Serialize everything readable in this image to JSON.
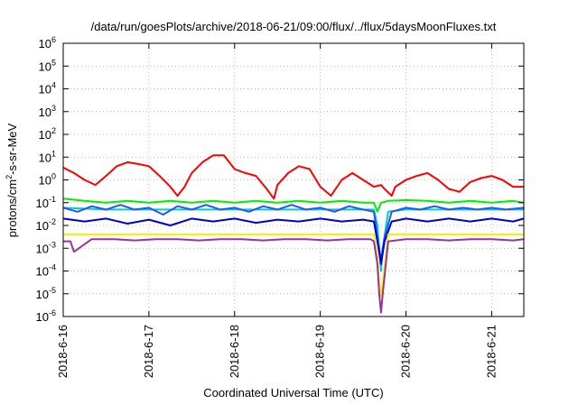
{
  "chart_data": {
    "type": "line",
    "title": "/data/run/goesPlots/archive/2018-06-21/09:00/flux/../flux/5daysMoonFluxes.txt",
    "xlabel": "Coordinated Universal Time (UTC)",
    "ylabel": {
      "prefix": "protons/cm",
      "superscript": "2",
      "suffix": "-s-sr-MeV"
    },
    "y_scale": "log",
    "ylim": [
      1e-06,
      1000000.0
    ],
    "y_ticks": [
      {
        "value": 1e-06,
        "base": "10",
        "exp": "-6"
      },
      {
        "value": 1e-05,
        "base": "10",
        "exp": "-5"
      },
      {
        "value": 0.0001,
        "base": "10",
        "exp": "-4"
      },
      {
        "value": 0.001,
        "base": "10",
        "exp": "-3"
      },
      {
        "value": 0.01,
        "base": "10",
        "exp": "-2"
      },
      {
        "value": 0.1,
        "base": "10",
        "exp": "-1"
      },
      {
        "value": 1,
        "base": "10",
        "exp": "0"
      },
      {
        "value": 10,
        "base": "10",
        "exp": "1"
      },
      {
        "value": 100,
        "base": "10",
        "exp": "2"
      },
      {
        "value": 1000,
        "base": "10",
        "exp": "3"
      },
      {
        "value": 10000,
        "base": "10",
        "exp": "4"
      },
      {
        "value": 100000,
        "base": "10",
        "exp": "5"
      },
      {
        "value": 1000000,
        "base": "10",
        "exp": "6"
      }
    ],
    "xlim": [
      "2018-06-16T00:00",
      "2018-06-21T09:00"
    ],
    "x_ticks": [
      "2018-6-16",
      "2018-6-17",
      "2018-6-18",
      "2018-6-19",
      "2018-6-20",
      "2018-6-21"
    ],
    "grid": true,
    "legend": "none",
    "series": [
      {
        "color": "#ff0000",
        "x": [
          "2018-06-16T00:00",
          "2018-06-16T03:00",
          "2018-06-16T06:00",
          "2018-06-16T09:00",
          "2018-06-16T12:00",
          "2018-06-16T15:00",
          "2018-06-16T18:00",
          "2018-06-16T21:00",
          "2018-06-17T00:00",
          "2018-06-17T03:00",
          "2018-06-17T06:00",
          "2018-06-17T08:00",
          "2018-06-17T10:00",
          "2018-06-17T12:00",
          "2018-06-17T15:00",
          "2018-06-17T18:00",
          "2018-06-17T21:00",
          "2018-06-18T00:00",
          "2018-06-18T03:00",
          "2018-06-18T06:00",
          "2018-06-18T09:00",
          "2018-06-18T11:00",
          "2018-06-18T12:00",
          "2018-06-18T15:00",
          "2018-06-18T18:00",
          "2018-06-18T21:00",
          "2018-06-19T00:00",
          "2018-06-19T03:00",
          "2018-06-19T06:00",
          "2018-06-19T09:00",
          "2018-06-19T12:00",
          "2018-06-19T15:00",
          "2018-06-19T17:00",
          "2018-06-19T18:00",
          "2018-06-19T20:00",
          "2018-06-19T21:00",
          "2018-06-20T00:00",
          "2018-06-20T03:00",
          "2018-06-20T06:00",
          "2018-06-20T09:00",
          "2018-06-20T12:00",
          "2018-06-20T15:00",
          "2018-06-20T18:00",
          "2018-06-20T21:00",
          "2018-06-21T00:00",
          "2018-06-21T03:00",
          "2018-06-21T06:00",
          "2018-06-21T09:00"
        ],
        "y": [
          3.5,
          2,
          1,
          0.6,
          1.5,
          4,
          6,
          5,
          4,
          1.5,
          0.5,
          0.2,
          0.5,
          2,
          6,
          12,
          12,
          3,
          2,
          1.5,
          0.4,
          0.15,
          0.6,
          2,
          4,
          3,
          0.5,
          0.2,
          1,
          2,
          1,
          0.5,
          0.6,
          0.4,
          0.2,
          0.5,
          1,
          1.5,
          2,
          1,
          0.4,
          0.3,
          0.8,
          1.2,
          1.5,
          1,
          0.5,
          0.5
        ]
      },
      {
        "color": "#00ee00",
        "x": [
          "2018-06-16T00:00",
          "2018-06-16T06:00",
          "2018-06-16T12:00",
          "2018-06-16T18:00",
          "2018-06-17T00:00",
          "2018-06-17T06:00",
          "2018-06-17T12:00",
          "2018-06-17T18:00",
          "2018-06-18T00:00",
          "2018-06-18T06:00",
          "2018-06-18T12:00",
          "2018-06-18T18:00",
          "2018-06-19T00:00",
          "2018-06-19T06:00",
          "2018-06-19T12:00",
          "2018-06-19T15:00",
          "2018-06-19T16:00",
          "2018-06-19T17:00",
          "2018-06-19T19:00",
          "2018-06-20T00:00",
          "2018-06-20T06:00",
          "2018-06-20T12:00",
          "2018-06-20T18:00",
          "2018-06-21T00:00",
          "2018-06-21T06:00",
          "2018-06-21T09:00"
        ],
        "y": [
          0.15,
          0.12,
          0.1,
          0.12,
          0.1,
          0.12,
          0.1,
          0.12,
          0.1,
          0.12,
          0.1,
          0.12,
          0.1,
          0.12,
          0.1,
          0.1,
          0.04,
          0.1,
          0.12,
          0.13,
          0.12,
          0.1,
          0.12,
          0.1,
          0.12,
          0.1
        ]
      },
      {
        "color": "#00cccc",
        "x": [
          "2018-06-16T00:00",
          "2018-06-16T12:00",
          "2018-06-17T00:00",
          "2018-06-17T12:00",
          "2018-06-18T00:00",
          "2018-06-18T12:00",
          "2018-06-19T00:00",
          "2018-06-19T12:00",
          "2018-06-19T15:00",
          "2018-06-19T16:00",
          "2018-06-19T16:30",
          "2018-06-19T17:00",
          "2018-06-19T17:30",
          "2018-06-19T19:00",
          "2018-06-20T00:00",
          "2018-06-20T12:00",
          "2018-06-21T00:00",
          "2018-06-21T09:00"
        ],
        "y": [
          0.06,
          0.05,
          0.05,
          0.05,
          0.05,
          0.05,
          0.05,
          0.05,
          0.05,
          0.01,
          0.001,
          0.0001,
          0.001,
          0.04,
          0.05,
          0.05,
          0.05,
          0.05
        ]
      },
      {
        "color": "#2255ff",
        "x": [
          "2018-06-16T00:00",
          "2018-06-16T04:00",
          "2018-06-16T08:00",
          "2018-06-16T12:00",
          "2018-06-16T16:00",
          "2018-06-16T20:00",
          "2018-06-17T00:00",
          "2018-06-17T04:00",
          "2018-06-17T08:00",
          "2018-06-17T12:00",
          "2018-06-17T16:00",
          "2018-06-17T20:00",
          "2018-06-18T00:00",
          "2018-06-18T04:00",
          "2018-06-18T08:00",
          "2018-06-18T12:00",
          "2018-06-18T16:00",
          "2018-06-18T20:00",
          "2018-06-19T00:00",
          "2018-06-19T04:00",
          "2018-06-19T08:00",
          "2018-06-19T12:00",
          "2018-06-19T15:00",
          "2018-06-19T16:00",
          "2018-06-19T17:00",
          "2018-06-19T18:00",
          "2018-06-19T20:00",
          "2018-06-20T00:00",
          "2018-06-20T04:00",
          "2018-06-20T08:00",
          "2018-06-20T12:00",
          "2018-06-20T16:00",
          "2018-06-20T20:00",
          "2018-06-21T00:00",
          "2018-06-21T04:00",
          "2018-06-21T09:00"
        ],
        "y": [
          0.06,
          0.04,
          0.07,
          0.05,
          0.08,
          0.05,
          0.06,
          0.03,
          0.07,
          0.05,
          0.08,
          0.05,
          0.06,
          0.04,
          0.07,
          0.05,
          0.08,
          0.05,
          0.06,
          0.04,
          0.07,
          0.05,
          0.04,
          0.003,
          0.0003,
          0.003,
          0.04,
          0.06,
          0.05,
          0.07,
          0.05,
          0.06,
          0.05,
          0.06,
          0.05,
          0.06
        ]
      },
      {
        "color": "#0000cc",
        "x": [
          "2018-06-16T00:00",
          "2018-06-16T06:00",
          "2018-06-16T12:00",
          "2018-06-16T18:00",
          "2018-06-17T00:00",
          "2018-06-17T06:00",
          "2018-06-17T12:00",
          "2018-06-17T18:00",
          "2018-06-18T00:00",
          "2018-06-18T06:00",
          "2018-06-18T12:00",
          "2018-06-18T18:00",
          "2018-06-19T00:00",
          "2018-06-19T06:00",
          "2018-06-19T12:00",
          "2018-06-19T15:00",
          "2018-06-19T16:00",
          "2018-06-19T17:00",
          "2018-06-19T18:00",
          "2018-06-19T20:00",
          "2018-06-20T00:00",
          "2018-06-20T06:00",
          "2018-06-20T12:00",
          "2018-06-20T18:00",
          "2018-06-21T00:00",
          "2018-06-21T06:00",
          "2018-06-21T09:00"
        ],
        "y": [
          0.02,
          0.015,
          0.02,
          0.012,
          0.018,
          0.01,
          0.02,
          0.015,
          0.02,
          0.013,
          0.018,
          0.015,
          0.02,
          0.015,
          0.018,
          0.015,
          0.002,
          0.0002,
          0.002,
          0.015,
          0.02,
          0.015,
          0.02,
          0.015,
          0.02,
          0.015,
          0.02
        ]
      },
      {
        "color": "#ffee00",
        "x": [
          "2018-06-16T00:00",
          "2018-06-16T12:00",
          "2018-06-17T00:00",
          "2018-06-17T12:00",
          "2018-06-18T00:00",
          "2018-06-18T12:00",
          "2018-06-19T00:00",
          "2018-06-19T12:00",
          "2018-06-19T15:00",
          "2018-06-19T16:00",
          "2018-06-19T16:30",
          "2018-06-19T17:00",
          "2018-06-19T17:30",
          "2018-06-19T19:00",
          "2018-06-20T00:00",
          "2018-06-20T12:00",
          "2018-06-21T00:00",
          "2018-06-21T09:00"
        ],
        "y": [
          0.004,
          0.004,
          0.004,
          0.004,
          0.004,
          0.004,
          0.004,
          0.004,
          0.004,
          0.0004,
          3e-05,
          8e-06,
          3e-05,
          0.004,
          0.004,
          0.004,
          0.004,
          0.004
        ]
      },
      {
        "color": "#993399",
        "x": [
          "2018-06-16T00:00",
          "2018-06-16T02:00",
          "2018-06-16T03:00",
          "2018-06-16T08:00",
          "2018-06-16T14:00",
          "2018-06-16T20:00",
          "2018-06-17T02:00",
          "2018-06-17T08:00",
          "2018-06-17T14:00",
          "2018-06-17T20:00",
          "2018-06-18T02:00",
          "2018-06-18T08:00",
          "2018-06-18T14:00",
          "2018-06-18T20:00",
          "2018-06-19T02:00",
          "2018-06-19T08:00",
          "2018-06-19T14:00",
          "2018-06-19T15:00",
          "2018-06-19T16:00",
          "2018-06-19T16:30",
          "2018-06-19T17:00",
          "2018-06-19T17:30",
          "2018-06-19T19:00",
          "2018-06-20T00:00",
          "2018-06-20T06:00",
          "2018-06-20T12:00",
          "2018-06-20T18:00",
          "2018-06-21T00:00",
          "2018-06-21T06:00",
          "2018-06-21T09:00"
        ],
        "y": [
          0.002,
          0.002,
          0.0007,
          0.0025,
          0.0025,
          0.0022,
          0.0025,
          0.0025,
          0.0022,
          0.0025,
          0.0025,
          0.0022,
          0.0025,
          0.0025,
          0.0022,
          0.0025,
          0.0025,
          0.002,
          0.0002,
          1e-05,
          1.5e-06,
          1e-05,
          0.002,
          0.0025,
          0.0025,
          0.0022,
          0.0025,
          0.0025,
          0.0022,
          0.0025
        ]
      }
    ]
  }
}
